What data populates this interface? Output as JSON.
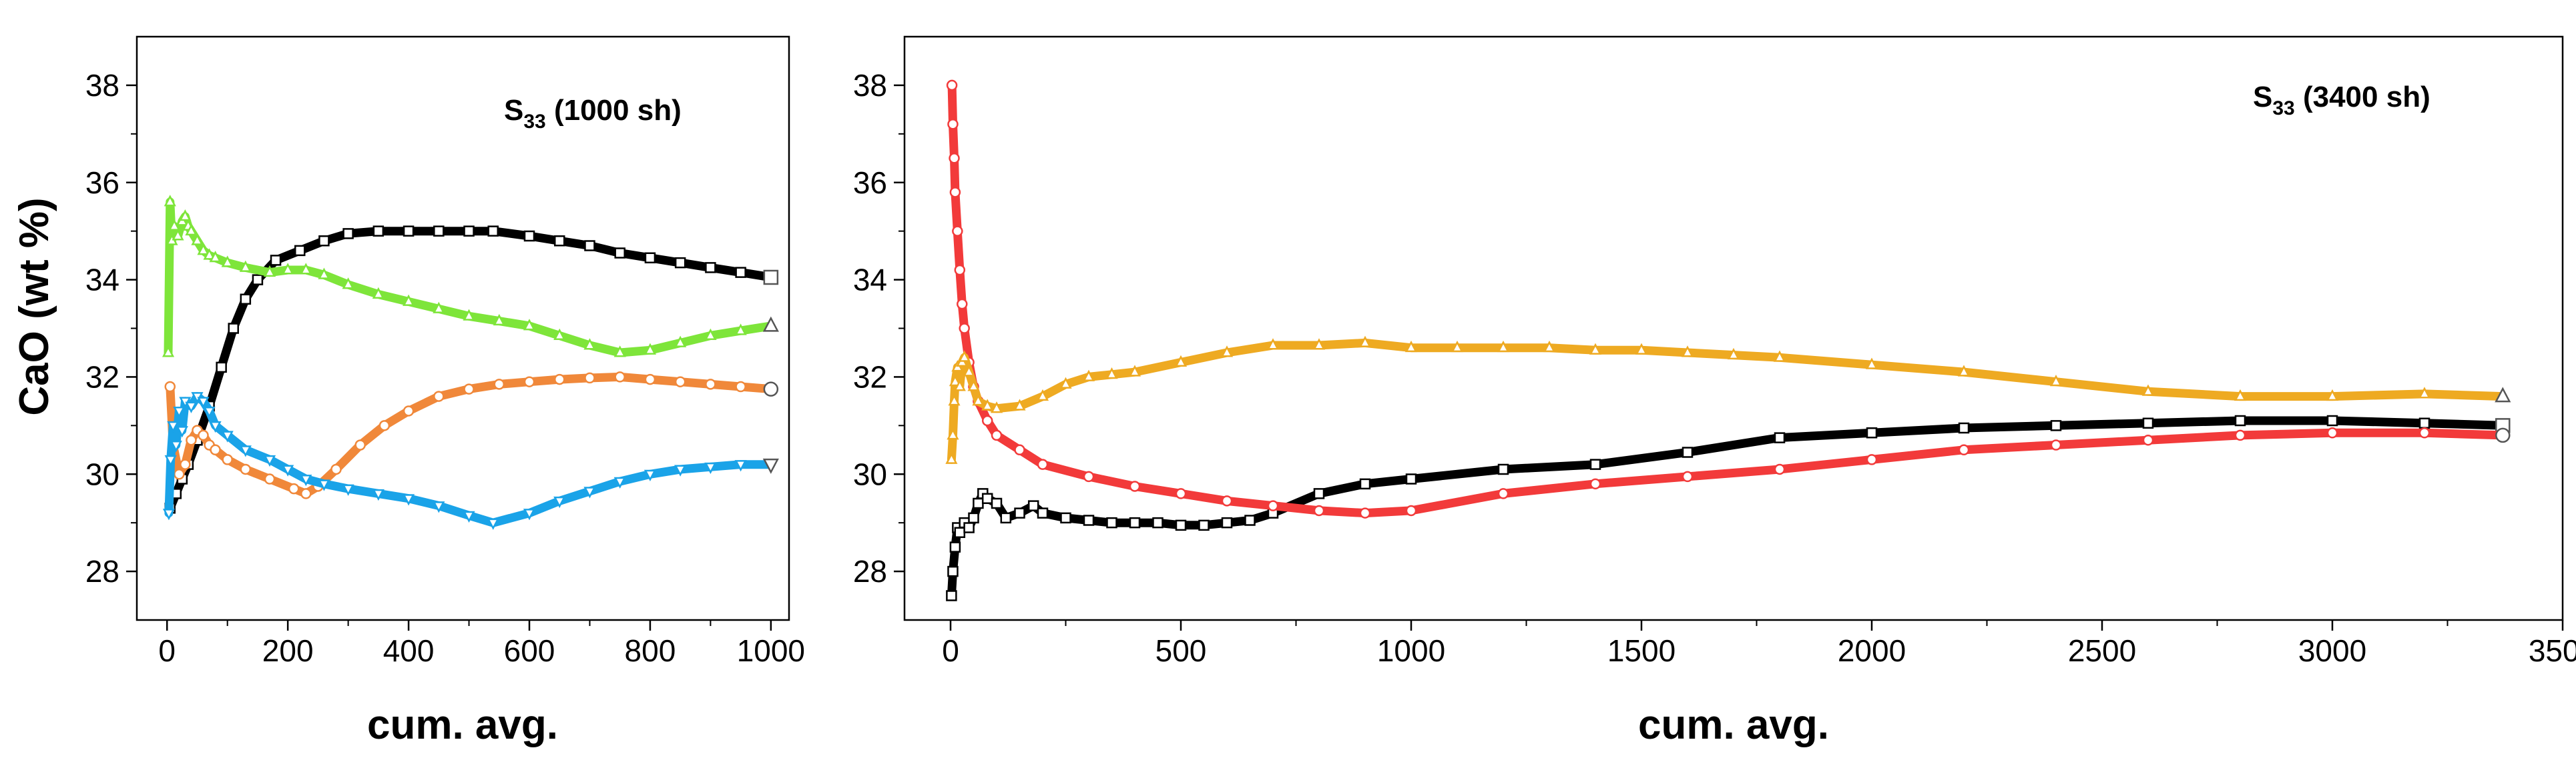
{
  "y_axis_title": "CaO (wt %)",
  "chart_data": [
    {
      "type": "line",
      "panel_label": {
        "main": "S",
        "sub": "33",
        "rest": " (1000 sh)"
      },
      "xlabel": "cum. avg.",
      "ylabel": "CaO (wt %)",
      "xlim": [
        -50,
        1030
      ],
      "ylim": [
        27,
        39
      ],
      "xticks": [
        0,
        200,
        400,
        600,
        800,
        1000
      ],
      "yticks": [
        28,
        30,
        32,
        34,
        36,
        38
      ],
      "series": [
        {
          "color": "#000000",
          "marker": "square",
          "x": [
            5,
            15,
            25,
            35,
            50,
            70,
            90,
            110,
            130,
            150,
            180,
            220,
            260,
            300,
            350,
            400,
            450,
            500,
            540,
            600,
            650,
            700,
            750,
            800,
            850,
            900,
            950,
            1000
          ],
          "y": [
            29.3,
            29.6,
            29.9,
            30.2,
            30.7,
            31.4,
            32.2,
            33.0,
            33.6,
            34.0,
            34.4,
            34.6,
            34.8,
            34.95,
            35.0,
            35.0,
            35.0,
            35.0,
            35.0,
            34.9,
            34.8,
            34.7,
            34.55,
            34.45,
            34.35,
            34.25,
            34.15,
            34.05
          ]
        },
        {
          "color": "#f0883a",
          "marker": "circle",
          "x": [
            5,
            10,
            20,
            30,
            40,
            50,
            60,
            70,
            80,
            100,
            130,
            170,
            210,
            230,
            250,
            280,
            320,
            360,
            400,
            450,
            500,
            550,
            600,
            650,
            700,
            750,
            800,
            850,
            900,
            950,
            1000
          ],
          "y": [
            31.8,
            30.6,
            30.0,
            30.2,
            30.7,
            30.9,
            30.8,
            30.6,
            30.5,
            30.3,
            30.1,
            29.9,
            29.7,
            29.6,
            29.75,
            30.1,
            30.6,
            31.0,
            31.3,
            31.6,
            31.75,
            31.85,
            31.9,
            31.95,
            31.98,
            32.0,
            31.95,
            31.9,
            31.85,
            31.8,
            31.75
          ]
        },
        {
          "color": "#7ee53a",
          "marker": "triangle-up",
          "x": [
            2,
            5,
            8,
            12,
            18,
            25,
            30,
            35,
            40,
            50,
            60,
            70,
            80,
            100,
            130,
            170,
            200,
            230,
            260,
            300,
            350,
            400,
            450,
            500,
            550,
            600,
            650,
            700,
            750,
            800,
            850,
            900,
            950,
            1000
          ],
          "y": [
            32.5,
            35.6,
            34.8,
            35.1,
            34.9,
            35.2,
            35.3,
            35.1,
            35.0,
            34.8,
            34.6,
            34.5,
            34.45,
            34.35,
            34.25,
            34.15,
            34.2,
            34.2,
            34.1,
            33.9,
            33.7,
            33.55,
            33.4,
            33.25,
            33.15,
            33.05,
            32.85,
            32.65,
            32.5,
            32.55,
            32.7,
            32.85,
            32.95,
            33.05
          ]
        },
        {
          "color": "#1aa3e8",
          "marker": "triangle-down",
          "x": [
            3,
            6,
            10,
            15,
            20,
            25,
            30,
            40,
            50,
            60,
            70,
            80,
            100,
            130,
            170,
            200,
            230,
            260,
            300,
            350,
            400,
            450,
            500,
            540,
            600,
            650,
            700,
            750,
            800,
            850,
            900,
            950,
            1000
          ],
          "y": [
            29.2,
            30.3,
            31.0,
            30.6,
            31.3,
            30.9,
            31.5,
            31.4,
            31.6,
            31.5,
            31.3,
            31.0,
            30.8,
            30.5,
            30.3,
            30.1,
            29.9,
            29.8,
            29.7,
            29.6,
            29.5,
            29.35,
            29.15,
            29.0,
            29.2,
            29.45,
            29.65,
            29.85,
            30.0,
            30.1,
            30.15,
            30.2,
            30.2
          ]
        }
      ]
    },
    {
      "type": "line",
      "panel_label": {
        "main": "S",
        "sub": "33",
        "rest": " (3400 sh)"
      },
      "xlabel": "cum. avg.",
      "ylabel": "",
      "xlim": [
        -100,
        3500
      ],
      "ylim": [
        27,
        39
      ],
      "xticks": [
        0,
        500,
        1000,
        1500,
        2000,
        2500,
        3000,
        3500
      ],
      "yticks": [
        28,
        30,
        32,
        34,
        36,
        38
      ],
      "series": [
        {
          "color": "#000000",
          "marker": "square",
          "x": [
            2,
            5,
            10,
            15,
            20,
            30,
            40,
            50,
            60,
            70,
            80,
            100,
            120,
            150,
            180,
            200,
            250,
            300,
            350,
            400,
            450,
            500,
            550,
            600,
            650,
            700,
            800,
            900,
            1000,
            1200,
            1400,
            1600,
            1800,
            2000,
            2200,
            2400,
            2600,
            2800,
            3000,
            3200,
            3370
          ],
          "y": [
            27.5,
            28.0,
            28.5,
            28.9,
            28.8,
            29.0,
            28.9,
            29.1,
            29.4,
            29.6,
            29.5,
            29.4,
            29.1,
            29.2,
            29.35,
            29.2,
            29.1,
            29.05,
            29.0,
            29.0,
            29.0,
            28.95,
            28.95,
            29.0,
            29.05,
            29.2,
            29.6,
            29.8,
            29.9,
            30.1,
            30.2,
            30.45,
            30.75,
            30.85,
            30.95,
            31.0,
            31.05,
            31.1,
            31.1,
            31.05,
            31.0
          ]
        },
        {
          "color": "#f23a3a",
          "marker": "circle",
          "x": [
            3,
            5,
            8,
            10,
            15,
            20,
            25,
            30,
            40,
            50,
            60,
            80,
            100,
            150,
            200,
            300,
            400,
            500,
            600,
            700,
            800,
            900,
            1000,
            1200,
            1400,
            1600,
            1800,
            2000,
            2200,
            2400,
            2600,
            2800,
            3000,
            3200,
            3370
          ],
          "y": [
            38.0,
            37.2,
            36.5,
            35.8,
            35.0,
            34.2,
            33.5,
            33.0,
            32.3,
            31.8,
            31.5,
            31.1,
            30.8,
            30.5,
            30.2,
            29.95,
            29.75,
            29.6,
            29.45,
            29.35,
            29.25,
            29.2,
            29.25,
            29.6,
            29.8,
            29.95,
            30.1,
            30.3,
            30.5,
            30.6,
            30.7,
            30.8,
            30.85,
            30.85,
            30.8
          ]
        },
        {
          "color": "#eeaa22",
          "marker": "triangle-up",
          "x": [
            2,
            5,
            8,
            10,
            15,
            20,
            25,
            30,
            40,
            50,
            60,
            80,
            100,
            150,
            200,
            250,
            300,
            350,
            400,
            500,
            600,
            700,
            800,
            900,
            1000,
            1100,
            1200,
            1300,
            1400,
            1500,
            1600,
            1700,
            1800,
            2000,
            2200,
            2400,
            2600,
            2800,
            3000,
            3200,
            3370
          ],
          "y": [
            30.3,
            30.8,
            31.5,
            31.9,
            32.2,
            31.8,
            32.3,
            32.4,
            32.1,
            31.8,
            31.5,
            31.4,
            31.35,
            31.4,
            31.6,
            31.85,
            32.0,
            32.05,
            32.1,
            32.3,
            32.5,
            32.65,
            32.65,
            32.7,
            32.6,
            32.6,
            32.6,
            32.6,
            32.55,
            32.55,
            32.5,
            32.45,
            32.4,
            32.25,
            32.1,
            31.9,
            31.7,
            31.6,
            31.6,
            31.65,
            31.6
          ]
        }
      ]
    }
  ]
}
